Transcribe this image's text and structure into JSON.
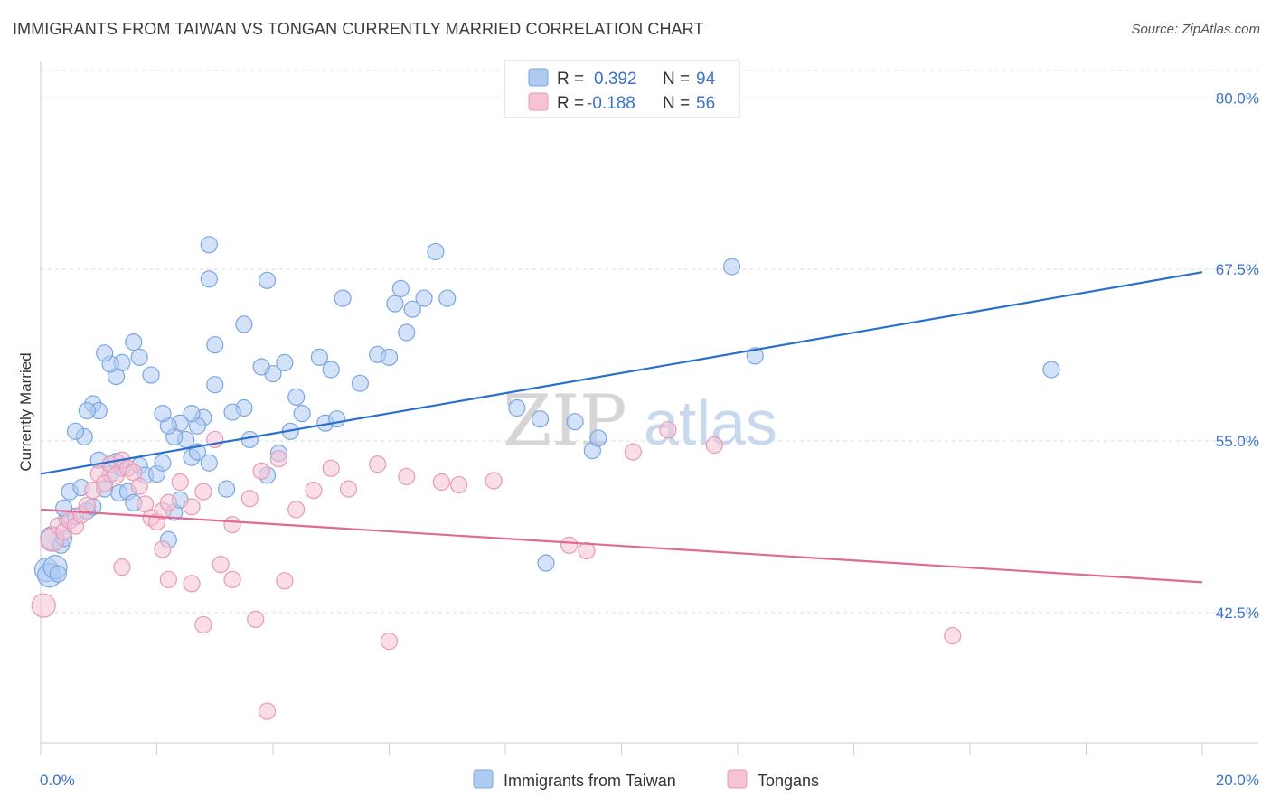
{
  "header": {
    "title": "IMMIGRANTS FROM TAIWAN VS TONGAN CURRENTLY MARRIED CORRELATION CHART",
    "source": "Source: ZipAtlas.com"
  },
  "watermark": {
    "zip": "ZIP",
    "atlas": "atlas"
  },
  "colors": {
    "blue_fill": "#aecbf2",
    "blue_stroke": "#7aa6e0",
    "blue_line": "#2a6fcc",
    "pink_fill": "#f6c3d3",
    "pink_stroke": "#e89ab3",
    "pink_line": "#e06a93",
    "tick_text": "#3b73c8",
    "grid": "#dddddd"
  },
  "legend": {
    "row1": {
      "r_label": "R =",
      "r_value": "0.392",
      "n_label": "N =",
      "n_value": "94"
    },
    "row2": {
      "r_label": "R =",
      "r_value": "-0.188",
      "n_label": "N =",
      "n_value": "56"
    }
  },
  "chart_data": {
    "type": "scatter",
    "title": "IMMIGRANTS FROM TAIWAN VS TONGAN CURRENTLY MARRIED CORRELATION CHART",
    "xlabel": "",
    "ylabel": "Currently Married",
    "xlim": [
      0.0,
      20.0
    ],
    "ylim": [
      33.0,
      82.0
    ],
    "x_tick_labels": [
      "0.0%",
      "20.0%"
    ],
    "x_tick_values": [
      0.0,
      20.0
    ],
    "y_tick_labels": [
      "80.0%",
      "67.5%",
      "55.0%",
      "42.5%"
    ],
    "y_tick_values": [
      80.0,
      67.5,
      55.0,
      42.5
    ],
    "grid": "horizontal dashed",
    "legend_position": "top-center",
    "series": [
      {
        "name": "Immigrants from Taiwan",
        "color": "#aecbf2",
        "r": 0.392,
        "n": 94,
        "trend": {
          "x": [
            0.0,
            20.0
          ],
          "y": [
            52.6,
            67.3
          ]
        },
        "points": [
          [
            0.1,
            45.6
          ],
          [
            0.15,
            45.2
          ],
          [
            0.2,
            47.9
          ],
          [
            0.25,
            45.8
          ],
          [
            0.3,
            45.3
          ],
          [
            0.35,
            47.4
          ],
          [
            0.4,
            47.9
          ],
          [
            0.45,
            49.3
          ],
          [
            0.4,
            50.1
          ],
          [
            0.5,
            51.3
          ],
          [
            0.6,
            49.5
          ],
          [
            0.7,
            51.6
          ],
          [
            0.8,
            49.9
          ],
          [
            0.9,
            50.2
          ],
          [
            1.0,
            53.6
          ],
          [
            1.1,
            51.5
          ],
          [
            1.2,
            52.6
          ],
          [
            1.3,
            53.5
          ],
          [
            1.35,
            51.2
          ],
          [
            1.4,
            53.0
          ],
          [
            1.5,
            51.3
          ],
          [
            1.6,
            50.5
          ],
          [
            1.7,
            53.2
          ],
          [
            1.8,
            52.5
          ],
          [
            2.0,
            52.6
          ],
          [
            2.1,
            53.4
          ],
          [
            2.2,
            47.8
          ],
          [
            2.3,
            49.8
          ],
          [
            2.4,
            50.7
          ],
          [
            2.5,
            55.1
          ],
          [
            2.6,
            53.8
          ],
          [
            2.7,
            54.2
          ],
          [
            2.9,
            53.4
          ],
          [
            3.2,
            51.5
          ],
          [
            3.6,
            55.1
          ],
          [
            3.9,
            52.5
          ],
          [
            4.1,
            54.1
          ],
          [
            4.3,
            55.7
          ],
          [
            4.5,
            57.0
          ],
          [
            4.9,
            56.3
          ],
          [
            5.1,
            56.6
          ],
          [
            5.5,
            59.2
          ],
          [
            5.8,
            61.3
          ],
          [
            6.0,
            61.1
          ],
          [
            5.0,
            60.2
          ],
          [
            4.8,
            61.1
          ],
          [
            4.4,
            58.2
          ],
          [
            4.2,
            60.7
          ],
          [
            4.0,
            59.9
          ],
          [
            3.8,
            60.4
          ],
          [
            3.5,
            57.4
          ],
          [
            3.3,
            57.1
          ],
          [
            3.0,
            59.1
          ],
          [
            2.8,
            56.7
          ],
          [
            2.7,
            56.1
          ],
          [
            2.6,
            57.0
          ],
          [
            2.4,
            56.3
          ],
          [
            2.3,
            55.3
          ],
          [
            2.2,
            56.1
          ],
          [
            2.1,
            57.0
          ],
          [
            1.9,
            59.8
          ],
          [
            1.7,
            61.1
          ],
          [
            1.6,
            62.2
          ],
          [
            1.4,
            60.7
          ],
          [
            1.3,
            59.7
          ],
          [
            1.2,
            60.6
          ],
          [
            1.1,
            61.4
          ],
          [
            0.9,
            57.7
          ],
          [
            1.0,
            57.2
          ],
          [
            0.8,
            57.2
          ],
          [
            0.75,
            55.3
          ],
          [
            0.6,
            55.7
          ],
          [
            3.0,
            62.0
          ],
          [
            3.5,
            63.5
          ],
          [
            2.9,
            69.3
          ],
          [
            2.9,
            66.8
          ],
          [
            3.9,
            66.7
          ],
          [
            5.2,
            65.4
          ],
          [
            6.1,
            65.0
          ],
          [
            6.4,
            64.6
          ],
          [
            6.3,
            62.9
          ],
          [
            6.2,
            66.1
          ],
          [
            6.8,
            68.8
          ],
          [
            6.6,
            65.4
          ],
          [
            7.0,
            65.4
          ],
          [
            8.2,
            57.4
          ],
          [
            8.6,
            56.6
          ],
          [
            9.2,
            56.4
          ],
          [
            9.5,
            54.3
          ],
          [
            9.6,
            55.2
          ],
          [
            8.7,
            46.1
          ],
          [
            11.9,
            67.7
          ],
          [
            12.3,
            61.2
          ],
          [
            17.4,
            60.2
          ]
        ]
      },
      {
        "name": "Tongans",
        "color": "#f6c3d3",
        "r": -0.188,
        "n": 56,
        "trend": {
          "x": [
            0.0,
            20.0
          ],
          "y": [
            50.0,
            44.7
          ]
        },
        "points": [
          [
            0.05,
            43.0
          ],
          [
            0.2,
            47.8
          ],
          [
            0.3,
            48.8
          ],
          [
            0.4,
            48.4
          ],
          [
            0.5,
            49.2
          ],
          [
            0.6,
            48.8
          ],
          [
            0.7,
            49.6
          ],
          [
            0.8,
            50.3
          ],
          [
            0.9,
            51.4
          ],
          [
            1.0,
            52.6
          ],
          [
            1.1,
            51.9
          ],
          [
            1.2,
            53.3
          ],
          [
            1.3,
            52.5
          ],
          [
            1.4,
            53.6
          ],
          [
            1.5,
            53.0
          ],
          [
            1.6,
            52.7
          ],
          [
            1.7,
            51.7
          ],
          [
            1.8,
            50.4
          ],
          [
            1.9,
            49.4
          ],
          [
            2.0,
            49.1
          ],
          [
            2.1,
            49.9
          ],
          [
            2.2,
            50.5
          ],
          [
            2.4,
            52.0
          ],
          [
            2.6,
            50.2
          ],
          [
            2.8,
            51.3
          ],
          [
            3.0,
            55.1
          ],
          [
            3.3,
            48.9
          ],
          [
            3.6,
            50.8
          ],
          [
            3.8,
            52.8
          ],
          [
            4.1,
            53.7
          ],
          [
            4.4,
            50.0
          ],
          [
            4.7,
            51.4
          ],
          [
            5.0,
            53.0
          ],
          [
            5.3,
            51.5
          ],
          [
            5.8,
            53.3
          ],
          [
            6.3,
            52.4
          ],
          [
            6.9,
            52.0
          ],
          [
            7.2,
            51.8
          ],
          [
            7.8,
            52.1
          ],
          [
            9.1,
            47.4
          ],
          [
            9.4,
            47.0
          ],
          [
            10.2,
            54.2
          ],
          [
            10.8,
            55.8
          ],
          [
            11.6,
            54.7
          ],
          [
            15.7,
            40.8
          ],
          [
            1.4,
            45.8
          ],
          [
            2.1,
            47.1
          ],
          [
            3.1,
            46.0
          ],
          [
            2.6,
            44.6
          ],
          [
            3.3,
            44.9
          ],
          [
            2.2,
            44.9
          ],
          [
            4.2,
            44.8
          ],
          [
            3.7,
            42.0
          ],
          [
            2.8,
            41.6
          ],
          [
            6.0,
            40.4
          ],
          [
            3.9,
            35.3
          ]
        ]
      }
    ]
  },
  "bottom_legend": {
    "series1": "Immigrants from Taiwan",
    "series2": "Tongans"
  }
}
